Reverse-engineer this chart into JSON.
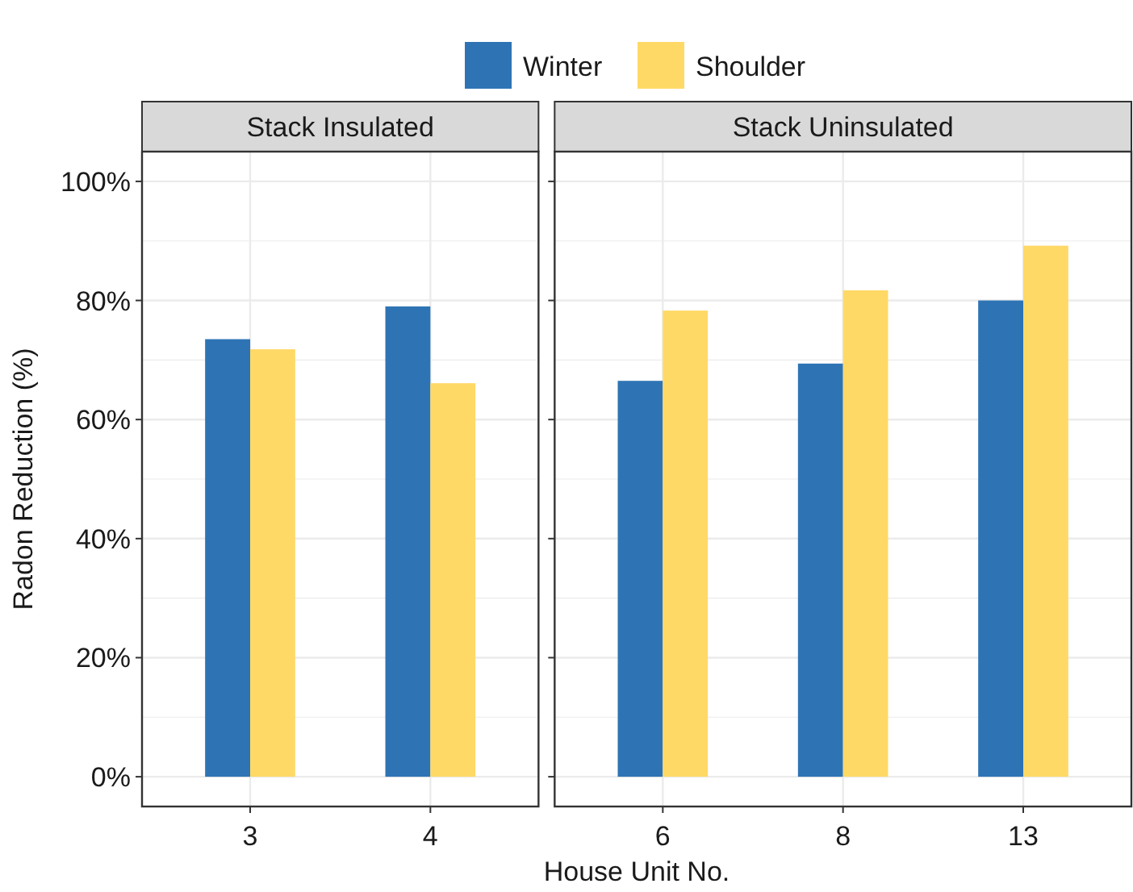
{
  "chart_data": [
    {
      "type": "bar",
      "title": "Stack Insulated",
      "ylabel": "Radon Reduction (%)",
      "categories": [
        "3",
        "4"
      ],
      "series": [
        {
          "name": "Winter",
          "color": "#2e74b5",
          "values": [
            73.5,
            79.0
          ]
        },
        {
          "name": "Shoulder",
          "color": "#ffd966",
          "values": [
            71.8,
            66.1
          ]
        }
      ],
      "ylim": [
        -5,
        105
      ],
      "yticks": [
        {
          "value": 0,
          "label": "0%"
        },
        {
          "value": 20,
          "label": "20%"
        },
        {
          "value": 40,
          "label": "40%"
        },
        {
          "value": 60,
          "label": "60%"
        },
        {
          "value": 80,
          "label": "80%"
        },
        {
          "value": 100,
          "label": "100%"
        }
      ],
      "grid": true,
      "legend": "top"
    },
    {
      "type": "bar",
      "title": "Stack Uninsulated",
      "xlabel": "House Unit No.",
      "categories": [
        "6",
        "8",
        "13"
      ],
      "series": [
        {
          "color": "#2e74b5",
          "values": [
            66.5,
            69.4,
            80.0
          ]
        },
        {
          "color": "#ffd966",
          "values": [
            78.3,
            81.7,
            89.2
          ]
        }
      ],
      "ylim": [
        -5,
        105
      ],
      "yticks": [
        {
          "value": 0,
          "label": null
        },
        {
          "value": 20,
          "label": null
        },
        {
          "value": 40,
          "label": null
        },
        {
          "value": 60,
          "label": null
        },
        {
          "value": 80,
          "label": null
        },
        {
          "value": 100,
          "label": null
        }
      ],
      "grid": true,
      "tick_labels": "x"
    }
  ]
}
